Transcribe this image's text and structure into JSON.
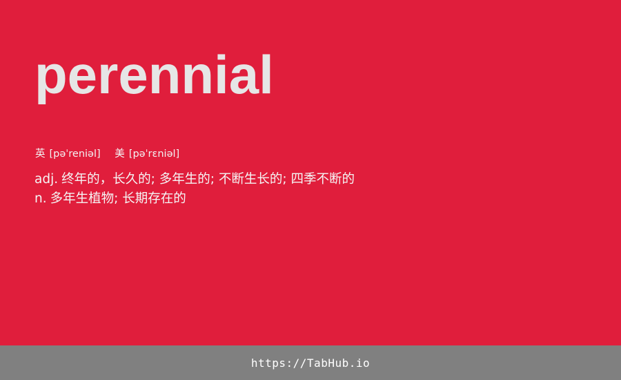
{
  "card": {
    "word": "perennial",
    "phonetics": [
      {
        "region": "英",
        "ipa": "[pəˈreniəl]"
      },
      {
        "region": "美",
        "ipa": "[pəˈrɛniəl]"
      }
    ],
    "definitions": [
      {
        "pos": "adj.",
        "meaning": "终年的，长久的; 多年生的; 不断生长的; 四季不断的"
      },
      {
        "pos": "n.",
        "meaning": "多年生植物; 长期存在的"
      }
    ]
  },
  "footer": {
    "url": "https://TabHub.io"
  },
  "colors": {
    "background": "#e01e3c",
    "word_text": "#e6e6e6",
    "footer_bar": "#808080",
    "footer_text": "#ffffff"
  }
}
